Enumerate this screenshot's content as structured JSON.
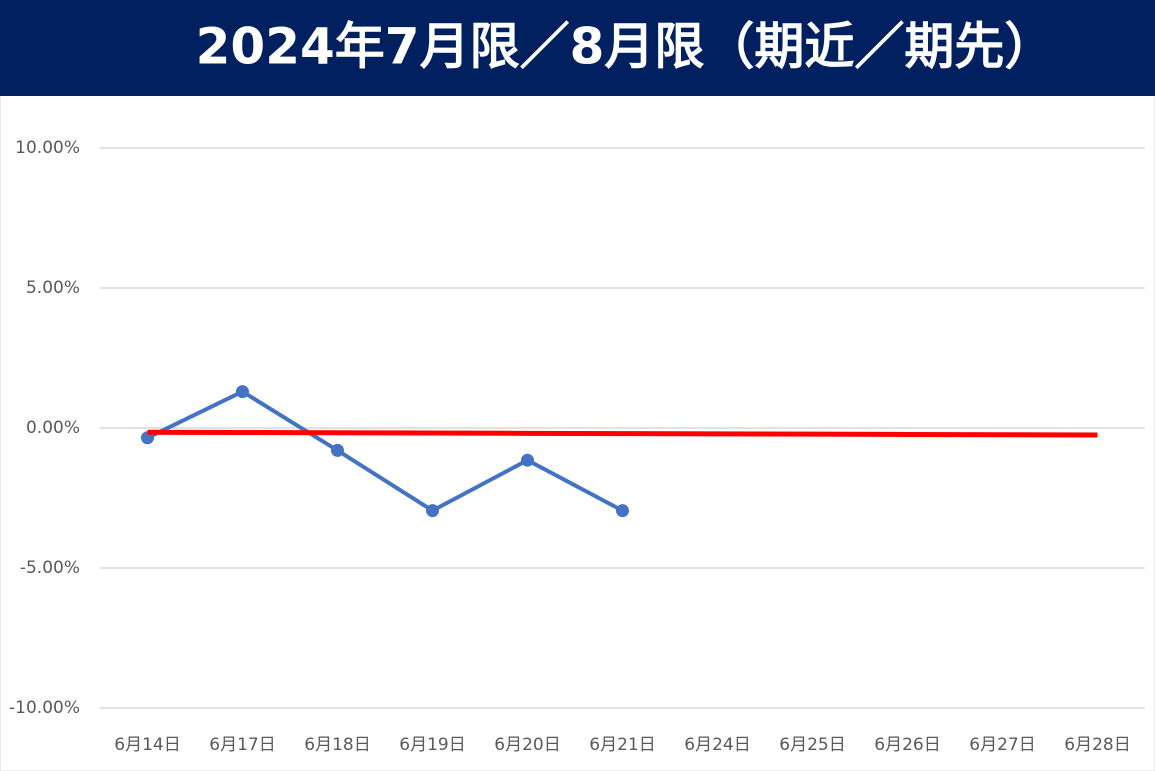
{
  "chart_data": {
    "type": "line",
    "title": "2024年7月限／8月限（期近／期先）",
    "categories": [
      "6月14日",
      "6月17日",
      "6月18日",
      "6月19日",
      "6月20日",
      "6月21日",
      "6月24日",
      "6月25日",
      "6月26日",
      "6月27日",
      "6月28日"
    ],
    "series": [
      {
        "color": "#4472c4",
        "values": [
          -0.35,
          1.3,
          -0.8,
          -2.95,
          -1.15,
          -2.95,
          null,
          null,
          null,
          null,
          null
        ],
        "markers": true
      },
      {
        "color": "#ff0000",
        "values": [
          -0.15,
          -0.16,
          -0.17,
          -0.18,
          -0.19,
          -0.2,
          -0.21,
          -0.22,
          -0.23,
          -0.24,
          -0.25
        ],
        "markers": false
      }
    ],
    "ylim": [
      -10,
      10
    ],
    "yticks": [
      {
        "value": -10,
        "label": "-10.00%"
      },
      {
        "value": -5,
        "label": "-5.00%"
      },
      {
        "value": 0,
        "label": "0.00%"
      },
      {
        "value": 5,
        "label": "5.00%"
      },
      {
        "value": 10,
        "label": "10.00%"
      }
    ],
    "grid": true
  }
}
